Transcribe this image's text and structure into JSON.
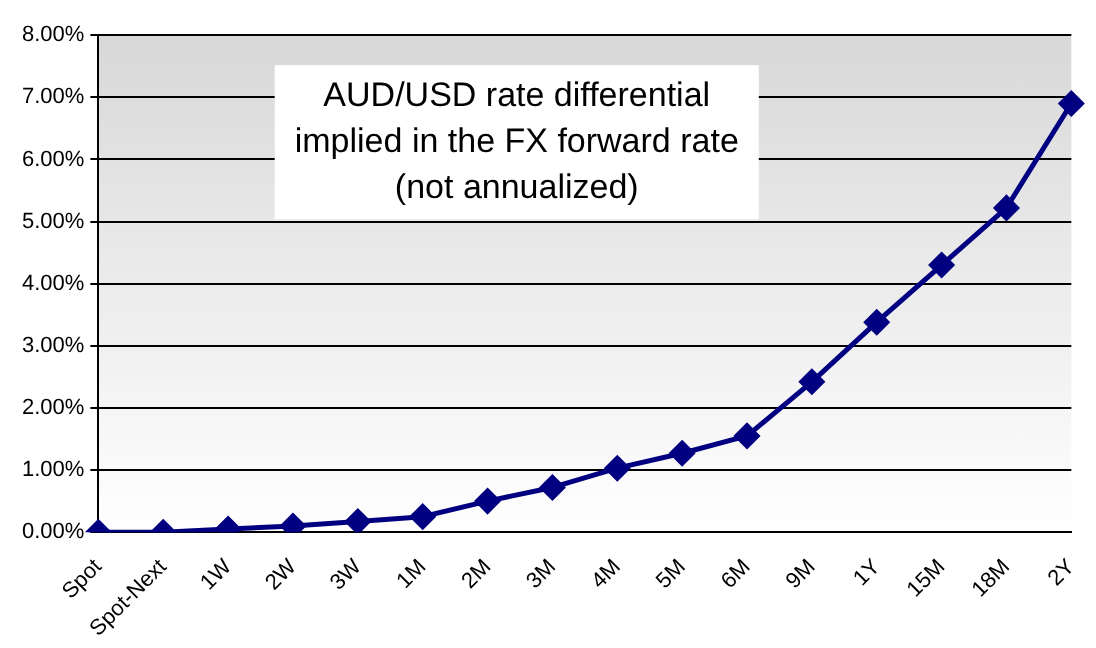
{
  "chart_data": {
    "type": "line",
    "title": "AUD/USD rate differential\nimplied in the FX forward rate\n(not annualized)",
    "categories": [
      "Spot",
      "Spot-Next",
      "1W",
      "2W",
      "3W",
      "1M",
      "2M",
      "3M",
      "4M",
      "5M",
      "6M",
      "9M",
      "1Y",
      "15M",
      "18M",
      "2Y"
    ],
    "series": [
      {
        "color": "#000080",
        "values": [
          0,
          0,
          0.05,
          0.1,
          0.17,
          0.25,
          0.5,
          0.72,
          1.03,
          1.27,
          1.55,
          2.42,
          3.38,
          4.3,
          5.22,
          6.9
        ]
      }
    ],
    "ylim": [
      0,
      8
    ],
    "yticks": [
      {
        "value": 0,
        "label": "0.00%"
      },
      {
        "value": 1,
        "label": "1.00%"
      },
      {
        "value": 2,
        "label": "2.00%"
      },
      {
        "value": 3,
        "label": "3.00%"
      },
      {
        "value": 4,
        "label": "4.00%"
      },
      {
        "value": 5,
        "label": "5.00%"
      },
      {
        "value": 6,
        "label": "6.00%"
      },
      {
        "value": 7,
        "label": "7.00%"
      },
      {
        "value": 8,
        "label": "8.00%"
      }
    ],
    "grid": "y",
    "legend": false,
    "marker": "diamond",
    "line_style": "solid"
  }
}
